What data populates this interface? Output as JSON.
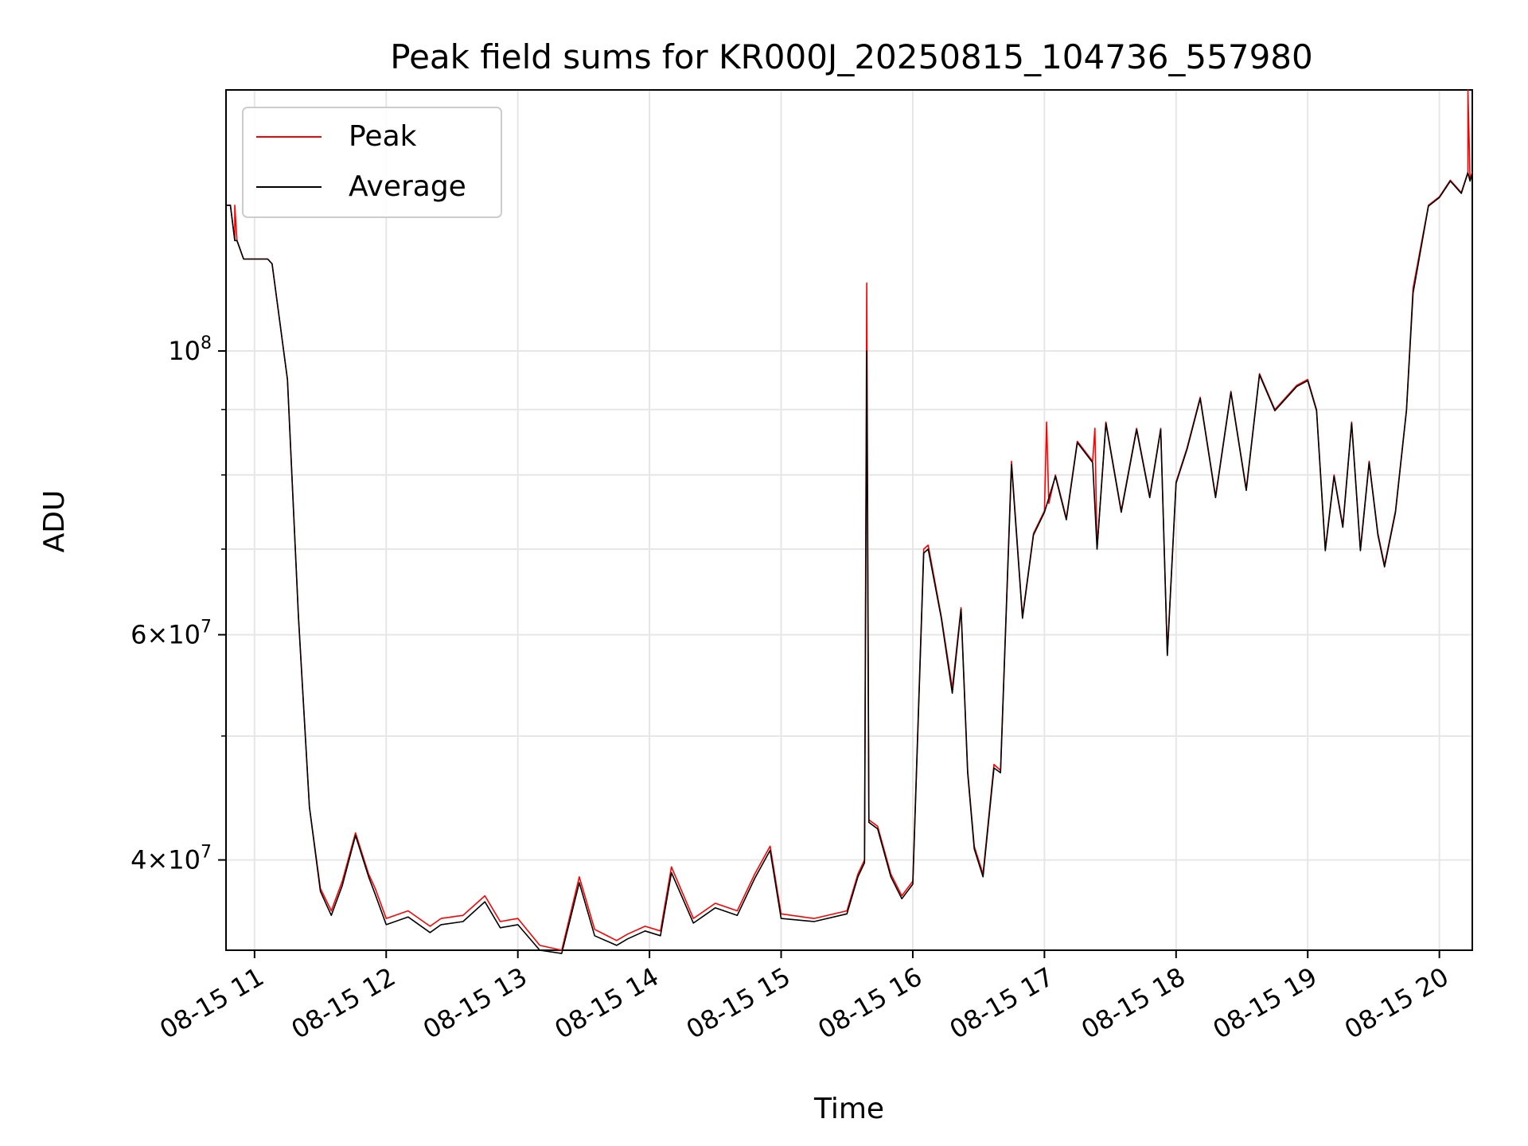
{
  "chart_data": {
    "type": "line",
    "title": "Peak field sums for KR000J_20250815_104736_557980",
    "xlabel": "Time",
    "ylabel": "ADU",
    "y_scale": "log",
    "ylim": [
      34000000,
      160000000
    ],
    "xlim": [
      "2025-08-15 10:47",
      "2025-08-15 20:15"
    ],
    "x_ticks": [
      {
        "value": "2025-08-15 11:00",
        "label": "08-15 11"
      },
      {
        "value": "2025-08-15 12:00",
        "label": "08-15 12"
      },
      {
        "value": "2025-08-15 13:00",
        "label": "08-15 13"
      },
      {
        "value": "2025-08-15 14:00",
        "label": "08-15 14"
      },
      {
        "value": "2025-08-15 15:00",
        "label": "08-15 15"
      },
      {
        "value": "2025-08-15 16:00",
        "label": "08-15 16"
      },
      {
        "value": "2025-08-15 17:00",
        "label": "08-15 17"
      },
      {
        "value": "2025-08-15 18:00",
        "label": "08-15 18"
      },
      {
        "value": "2025-08-15 19:00",
        "label": "08-15 19"
      },
      {
        "value": "2025-08-15 20:00",
        "label": "08-15 20"
      }
    ],
    "y_ticks_major": [
      {
        "value": 40000000,
        "base": "4",
        "exp": "7"
      },
      {
        "value": 60000000,
        "base": "6",
        "exp": "7"
      },
      {
        "value": 100000000,
        "base": "",
        "exp": "8"
      }
    ],
    "y_ticks_minor": [
      50000000,
      70000000,
      80000000,
      90000000
    ],
    "grid": true,
    "legend_position": "top-left",
    "series": [
      {
        "name": "Peak",
        "color": "#ff0000",
        "x": [
          "2025-08-15 10:47",
          "2025-08-15 10:49",
          "2025-08-15 10:51",
          "2025-08-15 10:51",
          "2025-08-15 10:52",
          "2025-08-15 10:55",
          "2025-08-15 11:00",
          "2025-08-15 11:06",
          "2025-08-15 11:08",
          "2025-08-15 11:15",
          "2025-08-15 11:20",
          "2025-08-15 11:25",
          "2025-08-15 11:30",
          "2025-08-15 11:35",
          "2025-08-15 11:40",
          "2025-08-15 11:46",
          "2025-08-15 11:52",
          "2025-08-15 11:55",
          "2025-08-15 12:00",
          "2025-08-15 12:10",
          "2025-08-15 12:20",
          "2025-08-15 12:25",
          "2025-08-15 12:35",
          "2025-08-15 12:45",
          "2025-08-15 12:52",
          "2025-08-15 13:00",
          "2025-08-15 13:10",
          "2025-08-15 13:20",
          "2025-08-15 13:28",
          "2025-08-15 13:35",
          "2025-08-15 13:45",
          "2025-08-15 13:50",
          "2025-08-15 13:58",
          "2025-08-15 14:05",
          "2025-08-15 14:10",
          "2025-08-15 14:20",
          "2025-08-15 14:30",
          "2025-08-15 14:40",
          "2025-08-15 14:48",
          "2025-08-15 14:55",
          "2025-08-15 15:00",
          "2025-08-15 15:15",
          "2025-08-15 15:30",
          "2025-08-15 15:35",
          "2025-08-15 15:38",
          "2025-08-15 15:39",
          "2025-08-15 15:40",
          "2025-08-15 15:44",
          "2025-08-15 15:50",
          "2025-08-15 15:55",
          "2025-08-15 16:00",
          "2025-08-15 16:05",
          "2025-08-15 16:07",
          "2025-08-15 16:13",
          "2025-08-15 16:18",
          "2025-08-15 16:22",
          "2025-08-15 16:25",
          "2025-08-15 16:28",
          "2025-08-15 16:32",
          "2025-08-15 16:37",
          "2025-08-15 16:40",
          "2025-08-15 16:45",
          "2025-08-15 16:50",
          "2025-08-15 16:55",
          "2025-08-15 17:00",
          "2025-08-15 17:01",
          "2025-08-15 17:02",
          "2025-08-15 17:05",
          "2025-08-15 17:10",
          "2025-08-15 17:15",
          "2025-08-15 17:22",
          "2025-08-15 17:23",
          "2025-08-15 17:24",
          "2025-08-15 17:28",
          "2025-08-15 17:35",
          "2025-08-15 17:42",
          "2025-08-15 17:48",
          "2025-08-15 17:53",
          "2025-08-15 17:56",
          "2025-08-15 18:00",
          "2025-08-15 18:05",
          "2025-08-15 18:11",
          "2025-08-15 18:18",
          "2025-08-15 18:25",
          "2025-08-15 18:32",
          "2025-08-15 18:38",
          "2025-08-15 18:45",
          "2025-08-15 18:55",
          "2025-08-15 19:00",
          "2025-08-15 19:04",
          "2025-08-15 19:08",
          "2025-08-15 19:12",
          "2025-08-15 19:16",
          "2025-08-15 19:20",
          "2025-08-15 19:24",
          "2025-08-15 19:28",
          "2025-08-15 19:32",
          "2025-08-15 19:35",
          "2025-08-15 19:40",
          "2025-08-15 19:45",
          "2025-08-15 19:48",
          "2025-08-15 19:55",
          "2025-08-15 20:00",
          "2025-08-15 20:05",
          "2025-08-15 20:10",
          "2025-08-15 20:13",
          "2025-08-15 20:13",
          "2025-08-15 20:14",
          "2025-08-15 20:15"
        ],
        "values": [
          130000000,
          130000000,
          122000000,
          130000000,
          122000000,
          118000000,
          118000000,
          118000000,
          117000000,
          95000000,
          62000000,
          44000000,
          38000000,
          36500000,
          38500000,
          42000000,
          39000000,
          38000000,
          36000000,
          36500000,
          35500000,
          36000000,
          36200000,
          37500000,
          35800000,
          36000000,
          34300000,
          34000000,
          38800000,
          35300000,
          34600000,
          35000000,
          35500000,
          35200000,
          39500000,
          36000000,
          37000000,
          36500000,
          39000000,
          41000000,
          36300000,
          36000000,
          36500000,
          39000000,
          40000000,
          113000000,
          43000000,
          42500000,
          39000000,
          37500000,
          38500000,
          70000000,
          70500000,
          62000000,
          54500000,
          63000000,
          47000000,
          41000000,
          39000000,
          47500000,
          47000000,
          82000000,
          62000000,
          72000000,
          75000000,
          88000000,
          76000000,
          80000000,
          74000000,
          85000000,
          82000000,
          87000000,
          70000000,
          88000000,
          75000000,
          87000000,
          77000000,
          87000000,
          58000000,
          79000000,
          84000000,
          92000000,
          77000000,
          93000000,
          78000000,
          96000000,
          90000000,
          94000000,
          95000000,
          90000000,
          70000000,
          80000000,
          73000000,
          88000000,
          70000000,
          82000000,
          72000000,
          68000000,
          75000000,
          90000000,
          112000000,
          130000000,
          132000000,
          136000000,
          133000000,
          138000000,
          160000000,
          136000000,
          138000000
        ]
      },
      {
        "name": "Average",
        "color": "#000000",
        "x": [
          "2025-08-15 10:47",
          "2025-08-15 10:49",
          "2025-08-15 10:51",
          "2025-08-15 10:52",
          "2025-08-15 10:55",
          "2025-08-15 11:00",
          "2025-08-15 11:06",
          "2025-08-15 11:08",
          "2025-08-15 11:15",
          "2025-08-15 11:20",
          "2025-08-15 11:25",
          "2025-08-15 11:30",
          "2025-08-15 11:35",
          "2025-08-15 11:40",
          "2025-08-15 11:46",
          "2025-08-15 11:52",
          "2025-08-15 11:55",
          "2025-08-15 12:00",
          "2025-08-15 12:10",
          "2025-08-15 12:20",
          "2025-08-15 12:25",
          "2025-08-15 12:35",
          "2025-08-15 12:45",
          "2025-08-15 12:52",
          "2025-08-15 13:00",
          "2025-08-15 13:10",
          "2025-08-15 13:20",
          "2025-08-15 13:28",
          "2025-08-15 13:35",
          "2025-08-15 13:45",
          "2025-08-15 13:50",
          "2025-08-15 13:58",
          "2025-08-15 14:05",
          "2025-08-15 14:10",
          "2025-08-15 14:20",
          "2025-08-15 14:30",
          "2025-08-15 14:40",
          "2025-08-15 14:48",
          "2025-08-15 14:55",
          "2025-08-15 15:00",
          "2025-08-15 15:15",
          "2025-08-15 15:30",
          "2025-08-15 15:35",
          "2025-08-15 15:38",
          "2025-08-15 15:39",
          "2025-08-15 15:40",
          "2025-08-15 15:44",
          "2025-08-15 15:50",
          "2025-08-15 15:55",
          "2025-08-15 16:00",
          "2025-08-15 16:05",
          "2025-08-15 16:07",
          "2025-08-15 16:13",
          "2025-08-15 16:18",
          "2025-08-15 16:22",
          "2025-08-15 16:25",
          "2025-08-15 16:28",
          "2025-08-15 16:32",
          "2025-08-15 16:37",
          "2025-08-15 16:40",
          "2025-08-15 16:45",
          "2025-08-15 16:50",
          "2025-08-15 16:55",
          "2025-08-15 17:00",
          "2025-08-15 17:05",
          "2025-08-15 17:10",
          "2025-08-15 17:15",
          "2025-08-15 17:22",
          "2025-08-15 17:24",
          "2025-08-15 17:28",
          "2025-08-15 17:35",
          "2025-08-15 17:42",
          "2025-08-15 17:48",
          "2025-08-15 17:53",
          "2025-08-15 17:56",
          "2025-08-15 18:00",
          "2025-08-15 18:05",
          "2025-08-15 18:11",
          "2025-08-15 18:18",
          "2025-08-15 18:25",
          "2025-08-15 18:32",
          "2025-08-15 18:38",
          "2025-08-15 18:45",
          "2025-08-15 18:55",
          "2025-08-15 19:00",
          "2025-08-15 19:04",
          "2025-08-15 19:08",
          "2025-08-15 19:12",
          "2025-08-15 19:16",
          "2025-08-15 19:20",
          "2025-08-15 19:24",
          "2025-08-15 19:28",
          "2025-08-15 19:32",
          "2025-08-15 19:35",
          "2025-08-15 19:40",
          "2025-08-15 19:45",
          "2025-08-15 19:48",
          "2025-08-15 19:55",
          "2025-08-15 20:00",
          "2025-08-15 20:05",
          "2025-08-15 20:10",
          "2025-08-15 20:13",
          "2025-08-15 20:14",
          "2025-08-15 20:15"
        ],
        "values": [
          130000000,
          130000000,
          122000000,
          122000000,
          118000000,
          118000000,
          118000000,
          117000000,
          95000000,
          62000000,
          44000000,
          37800000,
          36200000,
          38200000,
          41800000,
          38800000,
          37600000,
          35600000,
          36100000,
          35100000,
          35600000,
          35800000,
          37100000,
          35400000,
          35600000,
          34000000,
          33800000,
          38400000,
          34900000,
          34300000,
          34700000,
          35200000,
          34900000,
          39100000,
          35700000,
          36700000,
          36200000,
          38700000,
          40700000,
          36000000,
          35800000,
          36300000,
          38800000,
          39800000,
          100000000,
          42800000,
          42300000,
          38800000,
          37300000,
          38300000,
          69500000,
          70000000,
          61800000,
          54000000,
          62800000,
          46800000,
          40800000,
          38800000,
          47200000,
          46800000,
          81500000,
          61800000,
          71800000,
          74800000,
          79800000,
          73800000,
          84800000,
          81800000,
          70000000,
          87800000,
          74800000,
          86800000,
          76800000,
          86800000,
          57800000,
          78800000,
          83800000,
          91800000,
          76800000,
          92800000,
          77800000,
          95800000,
          89800000,
          93800000,
          94800000,
          89800000,
          69800000,
          79800000,
          72800000,
          87800000,
          69800000,
          81800000,
          71800000,
          67800000,
          74800000,
          89800000,
          111000000,
          129800000,
          131800000,
          135800000,
          132800000,
          137800000,
          135800000,
          137800000
        ]
      }
    ]
  }
}
